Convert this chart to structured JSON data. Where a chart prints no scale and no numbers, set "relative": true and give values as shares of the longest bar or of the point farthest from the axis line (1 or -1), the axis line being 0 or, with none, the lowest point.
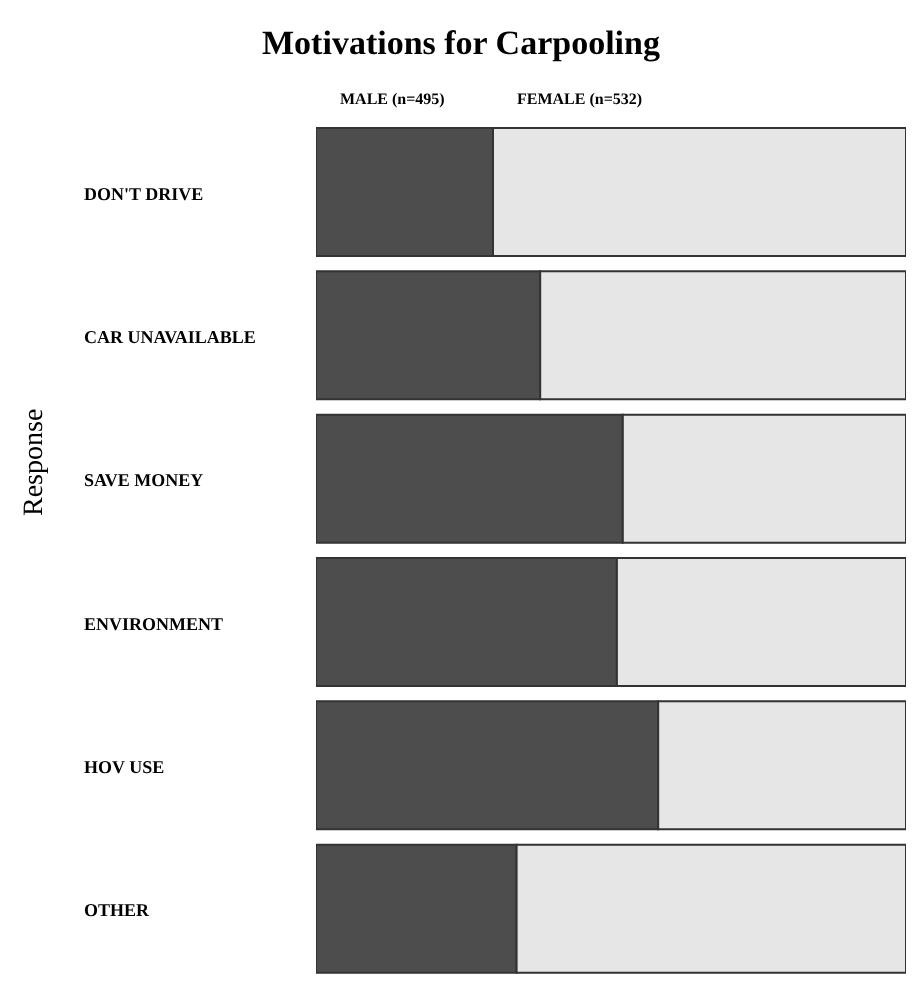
{
  "chart_data": {
    "type": "bar",
    "title": "Motivations for Carpooling",
    "ylabel": "Response",
    "orientation": "horizontal",
    "stacked": true,
    "relative": true,
    "categories": [
      "DON'T DRIVE",
      "CAR UNAVAILABLE",
      "SAVE MONEY",
      "ENVIRONMENT",
      "HOV USE",
      "OTHER"
    ],
    "series": [
      {
        "name": "MALE (n=495)",
        "color": "#4d4d4d",
        "values": [
          0.3,
          0.38,
          0.52,
          0.51,
          0.58,
          0.34
        ]
      },
      {
        "name": "FEMALE (n=532)",
        "color": "#e6e6e6",
        "values": [
          0.7,
          0.62,
          0.48,
          0.49,
          0.42,
          0.66
        ]
      }
    ],
    "legend": false,
    "grid": false
  }
}
